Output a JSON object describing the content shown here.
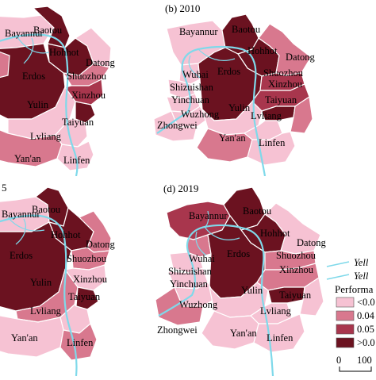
{
  "panels": [
    {
      "label": "",
      "cities": [
        "Bayannur",
        "Baotou",
        "Hohhot",
        "Datong",
        "Erdos",
        "Shuozhou",
        "Xinzhou",
        "Yulin",
        "Taiyuan",
        "Lvliang",
        "Yan'an",
        "Linfen"
      ]
    },
    {
      "label": "(b) 2010",
      "cities": [
        "Bayannur",
        "Baotou",
        "Hohhot",
        "Datong",
        "Erdos",
        "Shuozhou",
        "Xinzhou",
        "Wuhai",
        "Shizuishan",
        "Yinchuan",
        "Wuzhong",
        "Zhongwei",
        "Yulin",
        "Taiyuan",
        "Lvliang",
        "Yan'an",
        "Linfen"
      ]
    },
    {
      "label": "5",
      "cities": [
        "Bayannur",
        "Baotou",
        "Hohhot",
        "Datong",
        "Erdos",
        "Shuozhou",
        "Xinzhou",
        "Yulin",
        "Taiyuan",
        "Lvliang",
        "Yan'an",
        "Linfen"
      ]
    },
    {
      "label": "(d) 2019",
      "cities": [
        "Bayannur",
        "Baotou",
        "Hohhot",
        "Datong",
        "Erdos",
        "Shuozhou",
        "Xinzhou",
        "Wuhai",
        "Shizuishan",
        "Yinchuan",
        "Wuzhong",
        "Zhongwei",
        "Yulin",
        "Taiyuan",
        "Lvliang",
        "Yan'an",
        "Linfen"
      ]
    }
  ],
  "legend": {
    "river_items": [
      "Yell",
      "Yell"
    ],
    "title": "Performa",
    "classes": [
      {
        "label": "<0.0",
        "color": "#f6c2d3"
      },
      {
        "label": "0.04",
        "color": "#d8788e"
      },
      {
        "label": "0.05",
        "color": "#a8364d"
      },
      {
        "label": ">0.0",
        "color": "#6b1220"
      }
    ],
    "scale_labels": [
      "0",
      "100"
    ]
  },
  "colors": {
    "river": "#7fd9ea",
    "border": "#ffffff",
    "background": "#ffffff"
  }
}
